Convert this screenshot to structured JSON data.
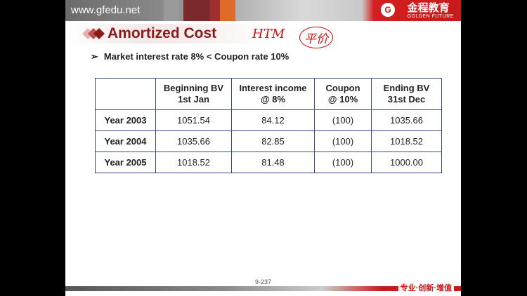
{
  "header": {
    "url": "www.gfedu.net",
    "logo": "金程教育",
    "logo_en": "GOLDEN FUTURE"
  },
  "title": "Amortized Cost",
  "annotations": [
    "HTM",
    "平价"
  ],
  "bullet": "Market interest rate 8% < Coupon rate 10%",
  "table": {
    "columns": [
      [
        "",
        ""
      ],
      [
        "Beginning BV",
        "1st Jan"
      ],
      [
        "Interest income",
        "@ 8%"
      ],
      [
        "Coupon",
        "@ 10%"
      ],
      [
        "Ending BV",
        "31st Dec"
      ]
    ],
    "rows": [
      [
        "Year 2003",
        "1051.54",
        "84.12",
        "(100)",
        "1035.66"
      ],
      [
        "Year 2004",
        "1035.66",
        "82.85",
        "(100)",
        "1018.52"
      ],
      [
        "Year 2005",
        "1018.52",
        "81.48",
        "(100)",
        "1000.00"
      ]
    ]
  },
  "footer": {
    "page": "9-237",
    "slogan": "专业·创新·增值"
  }
}
